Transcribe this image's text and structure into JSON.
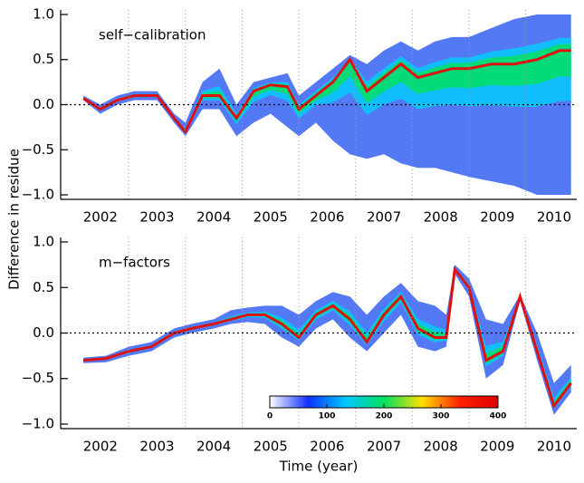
{
  "ylabel": "Difference in residue",
  "xlabel": "Time (year)",
  "chart_data": [
    {
      "type": "density-band",
      "annotation": "self−calibration",
      "xlim": [
        2001.8,
        2010.9
      ],
      "ylim": [
        -1.05,
        1.05
      ],
      "xticks": [
        {
          "value": 2002.5,
          "label": "2002"
        },
        {
          "value": 2003.5,
          "label": "2003"
        },
        {
          "value": 2004.5,
          "label": "2004"
        },
        {
          "value": 2005.5,
          "label": "2005"
        },
        {
          "value": 2006.5,
          "label": "2006"
        },
        {
          "value": 2007.5,
          "label": "2007"
        },
        {
          "value": 2008.5,
          "label": "2008"
        },
        {
          "value": 2009.5,
          "label": "2009"
        },
        {
          "value": 2010.5,
          "label": "2010"
        }
      ],
      "yticks": [
        {
          "value": -1,
          "label": "−1.0"
        },
        {
          "value": -0.5,
          "label": "−0.5"
        },
        {
          "value": 0,
          "label": "0.0"
        },
        {
          "value": 0.5,
          "label": "0.5"
        },
        {
          "value": 1,
          "label": "1.0"
        }
      ],
      "vlines": [
        2003,
        2004,
        2005,
        2006,
        2007,
        2008,
        2009,
        2010
      ],
      "hline": 0,
      "x": [
        2002.2,
        2002.5,
        2002.8,
        2003.1,
        2003.5,
        2003.8,
        2004.0,
        2004.3,
        2004.6,
        2004.9,
        2005.2,
        2005.5,
        2005.8,
        2006.0,
        2006.3,
        2006.6,
        2006.9,
        2007.2,
        2007.5,
        2007.8,
        2008.1,
        2008.4,
        2008.7,
        2009.0,
        2009.4,
        2009.8,
        2010.2,
        2010.6,
        2010.8
      ],
      "values": [
        0.07,
        -0.05,
        0.05,
        0.1,
        0.1,
        -0.15,
        -0.3,
        0.1,
        0.1,
        -0.15,
        0.15,
        0.22,
        0.2,
        -0.05,
        0.1,
        0.25,
        0.5,
        0.15,
        0.3,
        0.45,
        0.3,
        0.35,
        0.4,
        0.4,
        0.45,
        0.45,
        0.5,
        0.6,
        0.6
      ],
      "upper": [
        0.1,
        0.0,
        0.1,
        0.15,
        0.15,
        -0.1,
        -0.2,
        0.25,
        0.4,
        0.0,
        0.25,
        0.3,
        0.35,
        0.1,
        0.25,
        0.4,
        0.55,
        0.45,
        0.6,
        0.7,
        0.6,
        0.7,
        0.75,
        0.75,
        0.85,
        0.95,
        1.0,
        1.0,
        1.0
      ],
      "lower": [
        0.05,
        -0.1,
        0.0,
        0.05,
        0.05,
        -0.2,
        -0.35,
        -0.05,
        -0.05,
        -0.35,
        -0.2,
        -0.1,
        -0.25,
        -0.35,
        -0.2,
        -0.4,
        -0.55,
        -0.6,
        -0.55,
        -0.65,
        -0.7,
        -0.7,
        -0.75,
        -0.8,
        -0.85,
        -0.9,
        -1.0,
        -1.0,
        -1.0
      ]
    },
    {
      "type": "density-band",
      "annotation": "m−factors",
      "xlim": [
        2001.8,
        2010.9
      ],
      "ylim": [
        -1.05,
        1.05
      ],
      "xticks": [
        {
          "value": 2002.5,
          "label": "2002"
        },
        {
          "value": 2003.5,
          "label": "2003"
        },
        {
          "value": 2004.5,
          "label": "2004"
        },
        {
          "value": 2005.5,
          "label": "2005"
        },
        {
          "value": 2006.5,
          "label": "2006"
        },
        {
          "value": 2007.5,
          "label": "2007"
        },
        {
          "value": 2008.5,
          "label": "2008"
        },
        {
          "value": 2009.5,
          "label": "2009"
        },
        {
          "value": 2010.5,
          "label": "2010"
        }
      ],
      "yticks": [
        {
          "value": -1,
          "label": "−1.0"
        },
        {
          "value": -0.5,
          "label": "−0.5"
        },
        {
          "value": 0,
          "label": "0.0"
        },
        {
          "value": 0.5,
          "label": "0.5"
        },
        {
          "value": 1,
          "label": "1.0"
        }
      ],
      "vlines": [
        2003,
        2004,
        2005,
        2006,
        2007,
        2008,
        2009,
        2010
      ],
      "hline": 0,
      "x": [
        2002.2,
        2002.6,
        2003.0,
        2003.4,
        2003.8,
        2004.1,
        2004.5,
        2004.8,
        2005.1,
        2005.4,
        2005.7,
        2006.0,
        2006.3,
        2006.6,
        2006.9,
        2007.2,
        2007.5,
        2007.8,
        2008.1,
        2008.4,
        2008.6,
        2008.75,
        2009.0,
        2009.3,
        2009.6,
        2009.9,
        2010.2,
        2010.5,
        2010.8
      ],
      "values": [
        -0.3,
        -0.28,
        -0.2,
        -0.15,
        0.0,
        0.05,
        0.1,
        0.15,
        0.2,
        0.2,
        0.1,
        -0.05,
        0.2,
        0.3,
        0.15,
        -0.1,
        0.2,
        0.4,
        0.05,
        -0.05,
        -0.05,
        0.7,
        0.5,
        -0.3,
        -0.2,
        0.4,
        -0.2,
        -0.8,
        -0.55
      ],
      "upper": [
        -0.27,
        -0.25,
        -0.15,
        -0.1,
        0.05,
        0.1,
        0.15,
        0.25,
        0.28,
        0.3,
        0.3,
        0.2,
        0.35,
        0.45,
        0.4,
        0.2,
        0.4,
        0.55,
        0.35,
        0.3,
        0.2,
        0.75,
        0.6,
        0.15,
        0.1,
        0.42,
        0.0,
        -0.55,
        -0.35
      ],
      "lower": [
        -0.33,
        -0.32,
        -0.25,
        -0.2,
        -0.05,
        0.0,
        0.05,
        0.1,
        0.12,
        0.1,
        -0.05,
        -0.15,
        0.05,
        0.15,
        -0.05,
        -0.2,
        0.0,
        0.2,
        -0.15,
        -0.2,
        -0.15,
        0.65,
        0.4,
        -0.5,
        -0.35,
        0.35,
        -0.3,
        -0.9,
        -0.65
      ],
      "colorbar": {
        "lim": [
          0,
          400
        ],
        "ticks": [
          0,
          100,
          200,
          300,
          400
        ],
        "colors": [
          "#ffffff",
          "#1030ff",
          "#00c8ff",
          "#00e060",
          "#ffe000",
          "#ff2000",
          "#e00000"
        ]
      }
    }
  ]
}
